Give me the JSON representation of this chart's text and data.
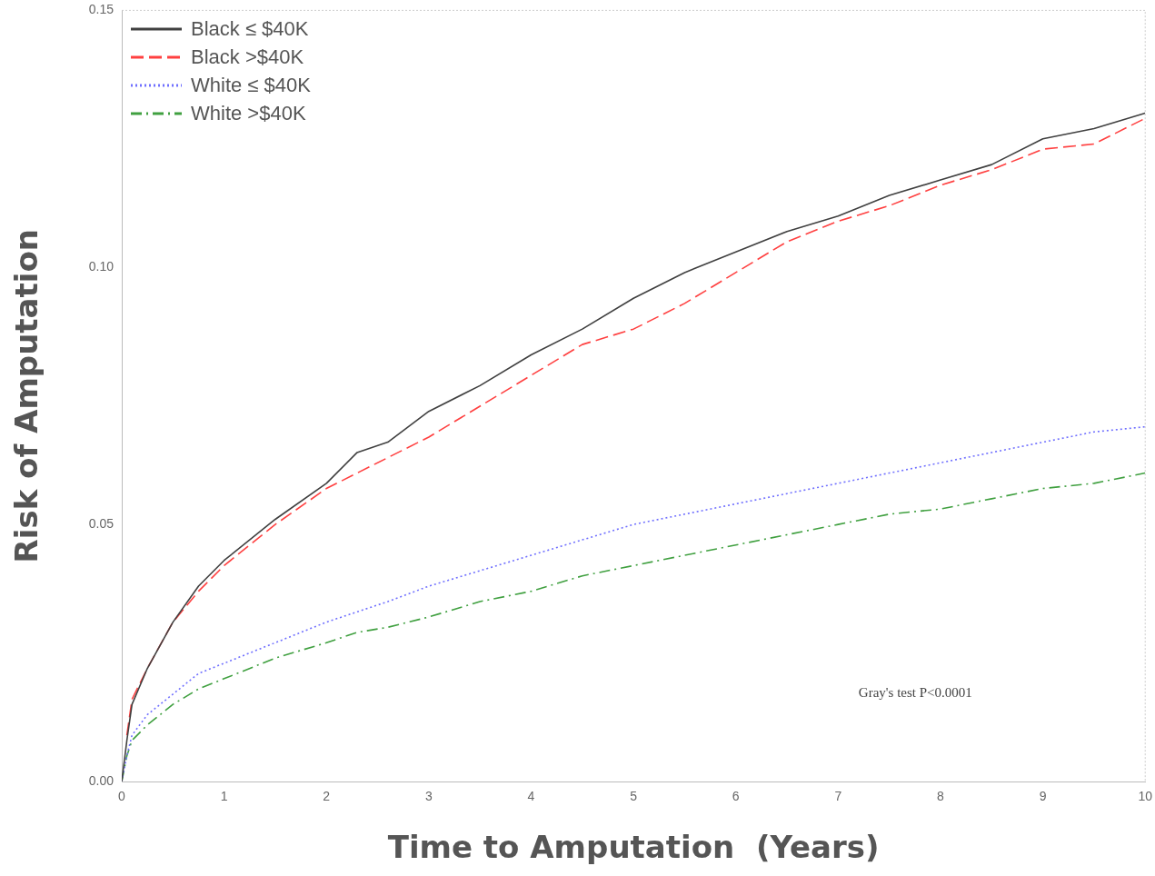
{
  "chart_data": {
    "type": "line",
    "xlabel": "Time to Amputation  (Years)",
    "ylabel": "Risk of Amputation",
    "x": [
      0,
      0.05,
      0.1,
      0.25,
      0.5,
      0.75,
      1,
      1.5,
      2,
      2.3,
      2.6,
      3,
      3.5,
      4,
      4.5,
      5,
      5.5,
      6,
      6.5,
      7,
      7.5,
      8,
      8.5,
      9,
      9.5,
      10
    ],
    "series": [
      {
        "name": "Black  ≤ $40K",
        "color": "#404040",
        "line_style": "solid",
        "values": [
          0,
          0.008,
          0.015,
          0.022,
          0.031,
          0.038,
          0.043,
          0.051,
          0.058,
          0.064,
          0.066,
          0.072,
          0.077,
          0.083,
          0.088,
          0.094,
          0.099,
          0.103,
          0.107,
          0.11,
          0.114,
          0.117,
          0.12,
          0.125,
          0.127,
          0.13
        ]
      },
      {
        "name": "Black >$40K",
        "color": "#ff4040",
        "line_style": "dashed",
        "values": [
          null,
          0.009,
          0.016,
          0.022,
          0.031,
          0.037,
          0.042,
          0.05,
          0.057,
          0.06,
          0.063,
          0.067,
          0.073,
          0.079,
          0.085,
          0.088,
          0.093,
          0.099,
          0.105,
          0.109,
          0.112,
          0.116,
          0.119,
          0.123,
          0.124,
          0.129
        ]
      },
      {
        "name": "White  ≤ $40K",
        "color": "#7070ff",
        "line_style": "dotted",
        "values": [
          0,
          0.005,
          0.009,
          0.013,
          0.017,
          0.021,
          0.023,
          0.027,
          0.031,
          0.033,
          0.035,
          0.038,
          0.041,
          0.044,
          0.047,
          0.05,
          0.052,
          0.054,
          0.056,
          0.058,
          0.06,
          0.062,
          0.064,
          0.066,
          0.068,
          0.069
        ]
      },
      {
        "name": "White >$40K",
        "color": "#40a040",
        "line_style": "dashdot",
        "values": [
          0,
          0.005,
          0.008,
          0.011,
          0.015,
          0.018,
          0.02,
          0.024,
          0.027,
          0.029,
          0.03,
          0.032,
          0.035,
          0.037,
          0.04,
          0.042,
          0.044,
          0.046,
          0.048,
          0.05,
          0.052,
          0.053,
          0.055,
          0.057,
          0.058,
          0.06
        ]
      }
    ],
    "xlim": [
      0,
      10
    ],
    "xticks": [
      0,
      1,
      2,
      3,
      4,
      5,
      6,
      7,
      8,
      9,
      10
    ],
    "ylim": [
      0,
      0.15
    ],
    "yticks": [
      {
        "value": 0,
        "label": "0.00"
      },
      {
        "value": 0.05,
        "label": "0.05"
      },
      {
        "value": 0.1,
        "label": "0.10"
      },
      {
        "value": 0.15,
        "label": "0.15"
      }
    ],
    "grid": false,
    "legend": "top left",
    "marker": "none",
    "annotations": [
      "Gray's test P<0.0001"
    ]
  }
}
